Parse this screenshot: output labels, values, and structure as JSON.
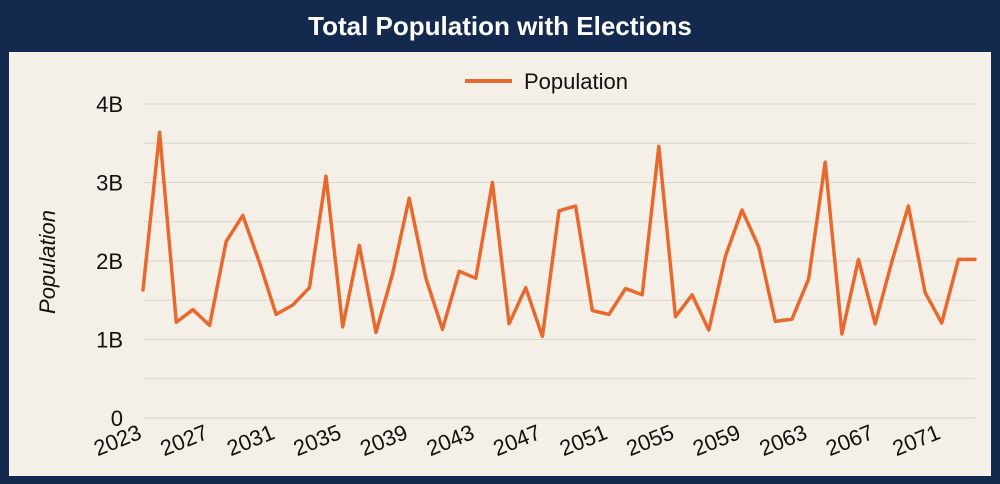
{
  "colors": {
    "frame": "#132a4e",
    "panel": "#f4f0e8",
    "line": "#e8692e",
    "grid": "#d9d4cc"
  },
  "chart_data": {
    "type": "line",
    "title": "Total Population with Elections",
    "xlabel": "",
    "ylabel": "Population",
    "ylim": [
      0,
      4000000000
    ],
    "y_ticks": [
      {
        "value": 0,
        "label": "0"
      },
      {
        "value": 1000000000,
        "label": "1B"
      },
      {
        "value": 2000000000,
        "label": "2B"
      },
      {
        "value": 3000000000,
        "label": "3B"
      },
      {
        "value": 4000000000,
        "label": "4B"
      }
    ],
    "x_tick_labels": [
      "2023",
      "2027",
      "2031",
      "2035",
      "2039",
      "2043",
      "2047",
      "2051",
      "2055",
      "2059",
      "2063",
      "2067",
      "2071"
    ],
    "grid": true,
    "legend_position": "top-center",
    "x": [
      2023,
      2024,
      2025,
      2026,
      2027,
      2028,
      2029,
      2030,
      2031,
      2032,
      2033,
      2034,
      2035,
      2036,
      2037,
      2038,
      2039,
      2040,
      2041,
      2042,
      2043,
      2044,
      2045,
      2046,
      2047,
      2048,
      2049,
      2050,
      2051,
      2052,
      2053,
      2054,
      2055,
      2056,
      2057,
      2058,
      2059,
      2060,
      2061,
      2062,
      2063,
      2064,
      2065,
      2066,
      2067,
      2068,
      2069,
      2070,
      2071,
      2072,
      2073
    ],
    "series": [
      {
        "name": "Population",
        "values": [
          1630000000,
          3640000000,
          1220000000,
          1380000000,
          1180000000,
          2250000000,
          2580000000,
          1980000000,
          1320000000,
          1440000000,
          1660000000,
          3080000000,
          1160000000,
          2200000000,
          1090000000,
          1840000000,
          2800000000,
          1780000000,
          1130000000,
          1870000000,
          1780000000,
          3000000000,
          1200000000,
          1660000000,
          1040000000,
          2640000000,
          2700000000,
          1370000000,
          1320000000,
          1650000000,
          1570000000,
          3460000000,
          1290000000,
          1570000000,
          1120000000,
          2060000000,
          2650000000,
          2180000000,
          1230000000,
          1260000000,
          1770000000,
          3260000000,
          1070000000,
          2020000000,
          1200000000,
          1990000000,
          2700000000,
          1600000000,
          1210000000,
          2020000000,
          2020000000
        ]
      }
    ]
  }
}
